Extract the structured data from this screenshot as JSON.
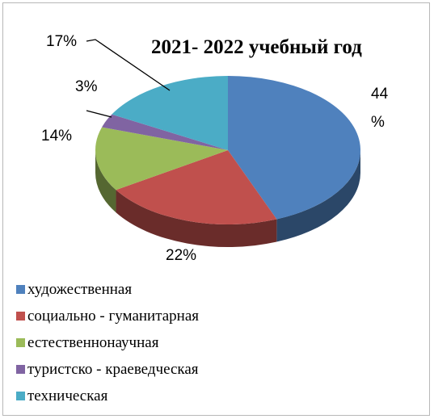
{
  "chart_data": {
    "type": "pie",
    "title": "2021- 2022 учебный год",
    "categories": [
      "художественная",
      "социально - гуманитарная",
      "естественнонаучная",
      "туристско - краеведческая",
      "техническая"
    ],
    "values": [
      44,
      22,
      14,
      3,
      17
    ],
    "data_labels": [
      "44 %",
      "22%",
      "14%",
      "3%",
      "17%"
    ],
    "colors": [
      "#4f81bd",
      "#c0504d",
      "#9bbb59",
      "#8064a2",
      "#4bacc6"
    ],
    "legend_position": "bottom",
    "style": "3d"
  }
}
